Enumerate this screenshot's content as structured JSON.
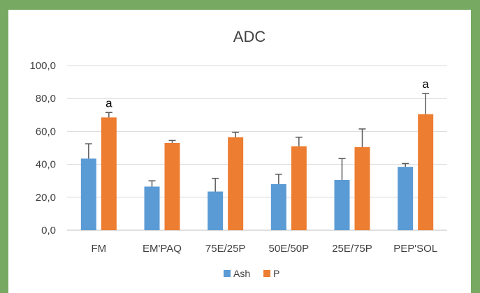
{
  "chart_data": {
    "type": "bar",
    "title": "ADC",
    "xlabel": "",
    "ylabel": "",
    "ylim": [
      0,
      100
    ],
    "yticks": [
      "0,0",
      "20,0",
      "40,0",
      "60,0",
      "80,0",
      "100,0"
    ],
    "categories": [
      "FM",
      "EM'PAQ",
      "75E/25P",
      "50E/50P",
      "25E/75P",
      "PEP'SOL"
    ],
    "series": [
      {
        "name": "Ash",
        "color": "#5b9bd5",
        "values": [
          43.5,
          26.5,
          23.5,
          28.0,
          30.5,
          38.5
        ],
        "errors": [
          9.0,
          3.5,
          8.0,
          6.0,
          13.0,
          2.0
        ]
      },
      {
        "name": "P",
        "color": "#ed7d31",
        "values": [
          68.5,
          53.0,
          56.5,
          51.0,
          50.5,
          70.5
        ],
        "errors": [
          3.0,
          1.5,
          3.0,
          5.5,
          11.0,
          12.5
        ]
      }
    ],
    "annotations": [
      {
        "series": "P",
        "category": "FM",
        "text": "a"
      },
      {
        "series": "P",
        "category": "PEP'SOL",
        "text": "a"
      }
    ],
    "grid": true,
    "legend": "bottom"
  }
}
